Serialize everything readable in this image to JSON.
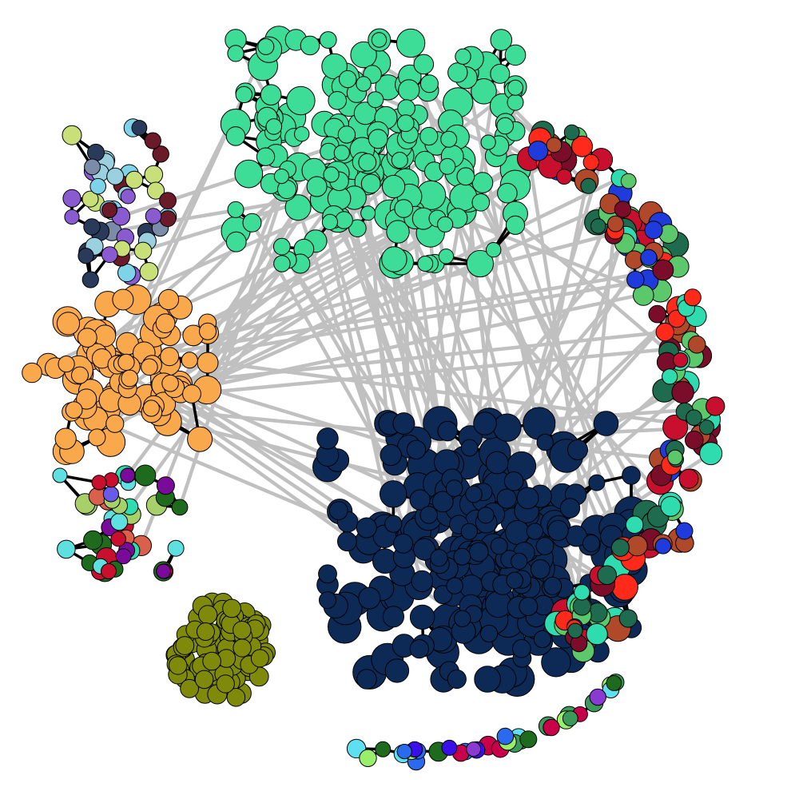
{
  "diagram": {
    "type": "network-graph",
    "labels": "none",
    "background": "#ffffff",
    "node_outline_color": "#000000",
    "intra_edge_color": "#000000",
    "inter_edge_color": "#c0c0c0",
    "communities": [
      {
        "name": "top-green-cluster",
        "palette": [
          "#3ddc97"
        ],
        "node_count": 200
      },
      {
        "name": "left-orange-cluster",
        "palette": [
          "#f9a94b"
        ],
        "node_count": 100
      },
      {
        "name": "bottom-navy-cluster",
        "palette": [
          "#0d2a57"
        ],
        "node_count": 280
      },
      {
        "name": "olive-isolated-cluster",
        "palette": [
          "#7f8a0a"
        ],
        "node_count": 95
      },
      {
        "name": "right-mixed-arc",
        "palette": [
          "#ff2a1a",
          "#7a0d2a",
          "#2fdcb0",
          "#5bc86b",
          "#c8102e",
          "#1f3bdc",
          "#b0492a",
          "#1e6b4f"
        ],
        "node_count": 150
      },
      {
        "name": "top-left-mixed-cluster",
        "palette": [
          "#7b8ca8",
          "#9ad0e0",
          "#6b1a2a",
          "#c9e07a",
          "#2a3a5a",
          "#8a5ad0",
          "#7ed3e8"
        ],
        "node_count": 50
      },
      {
        "name": "lower-left-mixed-cluster",
        "palette": [
          "#2fdcb0",
          "#1e6b1e",
          "#7a0a9a",
          "#d9604a",
          "#6a5ae8",
          "#c8102e",
          "#a8d06a",
          "#5fe0e0"
        ],
        "node_count": 45
      },
      {
        "name": "bottom-chain",
        "palette": [
          "#3a10e8",
          "#c8004a",
          "#1e6b1e",
          "#5fe0f0",
          "#8a3ad0",
          "#2a6aee",
          "#9aef6a",
          "#3b9a5a"
        ],
        "node_count": 35
      }
    ]
  }
}
